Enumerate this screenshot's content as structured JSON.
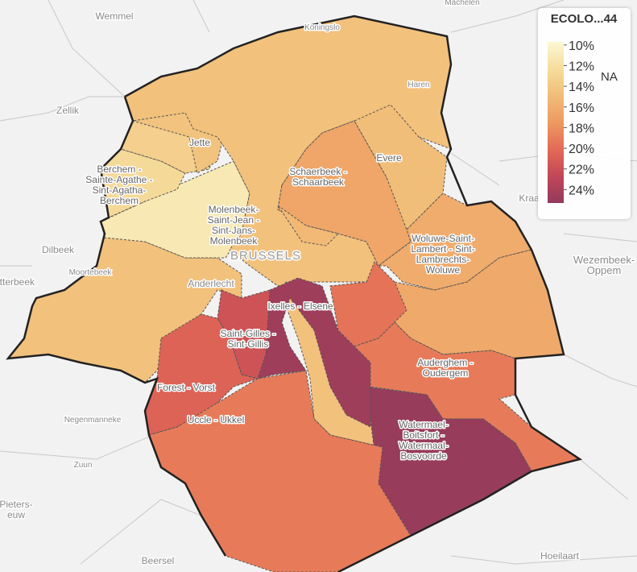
{
  "legend": {
    "title": "ECOLO...44",
    "lim": [
      9.7,
      25.3
    ],
    "palette": [
      "#fbf8d2",
      "#f6dd9c",
      "#f1bd78",
      "#ee9a60",
      "#e36a56",
      "#c24758",
      "#923a5c"
    ],
    "ticks": [
      {
        "value": 10,
        "label": "10%"
      },
      {
        "value": 12,
        "label": "12%"
      },
      {
        "value": 14,
        "label": "14%"
      },
      {
        "value": 16,
        "label": "16%"
      },
      {
        "value": 18,
        "label": "18%"
      },
      {
        "value": 20,
        "label": "20%"
      },
      {
        "value": 22,
        "label": "22%"
      },
      {
        "value": 24,
        "label": "24%"
      }
    ],
    "na_label": "NA"
  },
  "regions": [
    14.6,
    11.2,
    12.6,
    13.4,
    14.4,
    14.6,
    14.6,
    16.6,
    14.8,
    15.2,
    16.2,
    16.4,
    19.6,
    19.2,
    25,
    24.6,
    21.8,
    20.6,
    19.2
  ],
  "place_labels": [
    [
      "Wemmel"
    ],
    [
      "Machelen"
    ],
    [
      "Koningslo"
    ],
    [
      "Haren"
    ],
    [
      "Zellik"
    ],
    [
      "Dilbeek"
    ],
    [
      "Anderlecht"
    ],
    [
      "BRUSSELS"
    ],
    [
      "Evere"
    ],
    [
      "Jette"
    ],
    [
      "Berchem -",
      "Sainte-Agathe -",
      "Sint-Agatha-",
      "Berchem"
    ],
    [
      "Schaerbeek -",
      "Schaarbeek"
    ],
    [
      "Molenbeek-",
      "Saint-Jean -",
      "Sint-Jans-",
      "Molenbeek"
    ],
    [
      "Woluwe-Saint-",
      "Lambert - Sint-",
      "Lambrechts-",
      "Woluwe"
    ],
    [
      "Ixelles - Elsene"
    ],
    [
      "Saint-Gilles -",
      "Sint-Gillis"
    ],
    [
      "Forest - Vorst"
    ],
    [
      "Uccle - Ukkel"
    ],
    [
      "Auderghem -",
      "Oudergem"
    ],
    [
      "Watermael-",
      "Boitsfort -",
      "Watermaal-",
      "Bosvoorde"
    ],
    [
      "Wezembeek-",
      "Oppem"
    ],
    [
      "Negenmanneke"
    ],
    [
      "Zuun"
    ],
    [
      "Pieters-",
      "euw"
    ],
    [
      "Beersel"
    ],
    [
      "Hoeilaart"
    ],
    [
      "Moortebeek"
    ],
    [
      "itterbeek"
    ],
    [
      "Kraa"
    ]
  ]
}
